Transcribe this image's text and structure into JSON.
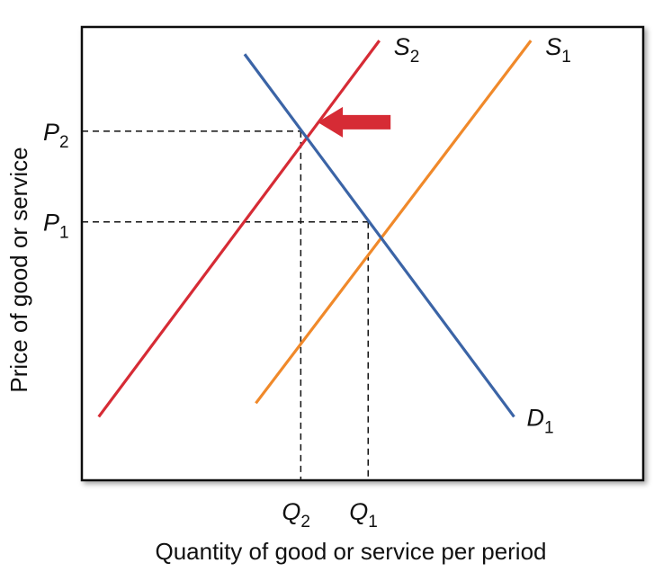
{
  "chart_data": {
    "type": "line",
    "xlabel": "Quantity of good or service per period",
    "ylabel": "Price of good or service",
    "xlim": [
      0,
      10
    ],
    "ylim": [
      0,
      10
    ],
    "grid": false,
    "legend": "none",
    "series": [
      {
        "name": "S2",
        "label_letter": "S",
        "label_sub": "2",
        "color": "#d62b35",
        "points": [
          [
            0.3,
            1.4
          ],
          [
            5.3,
            9.7
          ]
        ]
      },
      {
        "name": "S1",
        "label_letter": "S",
        "label_sub": "1",
        "color": "#f0892a",
        "points": [
          [
            3.1,
            1.7
          ],
          [
            8.0,
            9.7
          ]
        ]
      },
      {
        "name": "D1",
        "label_letter": "D",
        "label_sub": "1",
        "color": "#3b64a6",
        "points": [
          [
            2.9,
            9.4
          ],
          [
            7.7,
            1.4
          ]
        ]
      }
    ],
    "equilibria": [
      {
        "x": 3.9,
        "y": 7.7,
        "x_letter": "Q",
        "x_sub": "2",
        "y_letter": "P",
        "y_sub": "2"
      },
      {
        "x": 5.1,
        "y": 5.7,
        "x_letter": "Q",
        "x_sub": "1",
        "y_letter": "P",
        "y_sub": "1"
      }
    ],
    "shift_arrow": {
      "from": [
        5.5,
        7.9
      ],
      "to": [
        4.2,
        7.9
      ],
      "color": "#d62b35"
    }
  }
}
